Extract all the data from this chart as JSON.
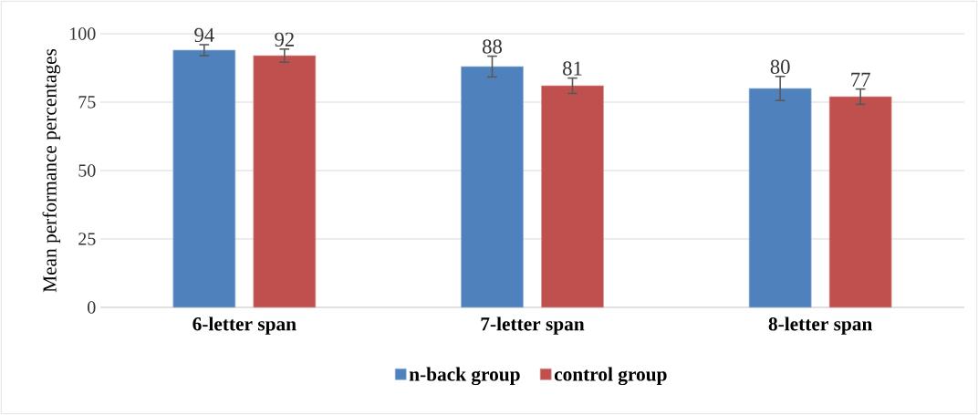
{
  "chart_data": {
    "type": "bar",
    "ylabel": "Mean performance percentages",
    "categories": [
      "6-letter span",
      "7-letter span",
      "8-letter span"
    ],
    "series": [
      {
        "name": "n-back group",
        "color": "#4f81bd",
        "values": [
          94,
          88,
          80
        ],
        "errors": [
          2,
          3.8,
          4.4
        ],
        "value_labels": [
          "94",
          "88",
          "80"
        ]
      },
      {
        "name": "control group",
        "color": "#c0504d",
        "values": [
          92,
          81,
          77
        ],
        "errors": [
          2.4,
          2.8,
          2.8
        ],
        "value_labels": [
          "92",
          "81",
          "77"
        ]
      }
    ],
    "ylim": [
      0,
      100
    ],
    "yticks": [
      0,
      25,
      50,
      75,
      100
    ],
    "grid": "y",
    "legend": "bottom"
  }
}
